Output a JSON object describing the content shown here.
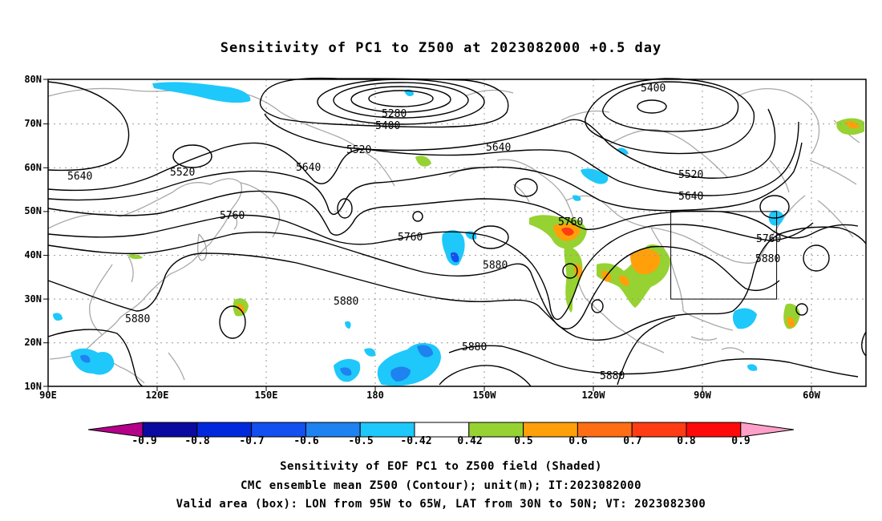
{
  "title": "Sensitivity of PC1 to Z500 at 2023082000 +0.5 day",
  "map": {
    "lat_labels": [
      "80N",
      "70N",
      "60N",
      "50N",
      "40N",
      "30N",
      "20N",
      "10N"
    ],
    "lon_labels": [
      "90E",
      "120E",
      "150E",
      "180",
      "150W",
      "120W",
      "90W",
      "60W"
    ],
    "contour_labels": {
      "c5280": "5280",
      "c5400a": "5400",
      "c5400b": "5400",
      "c5520a": "5520",
      "c5520b": "5520",
      "c5520c": "5520",
      "c5640a": "5640",
      "c5640b": "5640",
      "c5640c": "5640",
      "c5640d": "5640",
      "c5760a": "5760",
      "c5760b": "5760",
      "c5760c": "5760",
      "c5760d": "5760",
      "c5880a": "5880",
      "c5880b": "5880",
      "c5880c": "5880",
      "c5880d": "5880",
      "c5880e": "5880",
      "c5880f": "5880"
    },
    "valid_box": {
      "lon_from": "95W",
      "lon_to": "65W",
      "lat_from": "30N",
      "lat_to": "50N"
    }
  },
  "colorbar": {
    "labels": [
      "-0.9",
      "-0.8",
      "-0.7",
      "-0.6",
      "-0.5",
      "-0.42",
      "0.42",
      "0.5",
      "0.6",
      "0.7",
      "0.8",
      "0.9"
    ],
    "colors": [
      "#b5008a",
      "#0a0aa0",
      "#0028dc",
      "#1450f0",
      "#1e82f0",
      "#1ec8fa",
      "#ffffff",
      "#96d232",
      "#ffa00a",
      "#ff6e14",
      "#ff3c14",
      "#ff0a0a",
      "#ffa0c8"
    ]
  },
  "captions": {
    "line1": "Sensitivity of EOF PC1 to Z500 field (Shaded)",
    "line2": "CMC ensemble mean Z500 (Contour); unit(m); IT:2023082000",
    "line3": "Valid area (box): LON from 95W to 65W, LAT from 30N to 50N; VT: 2023082300"
  }
}
